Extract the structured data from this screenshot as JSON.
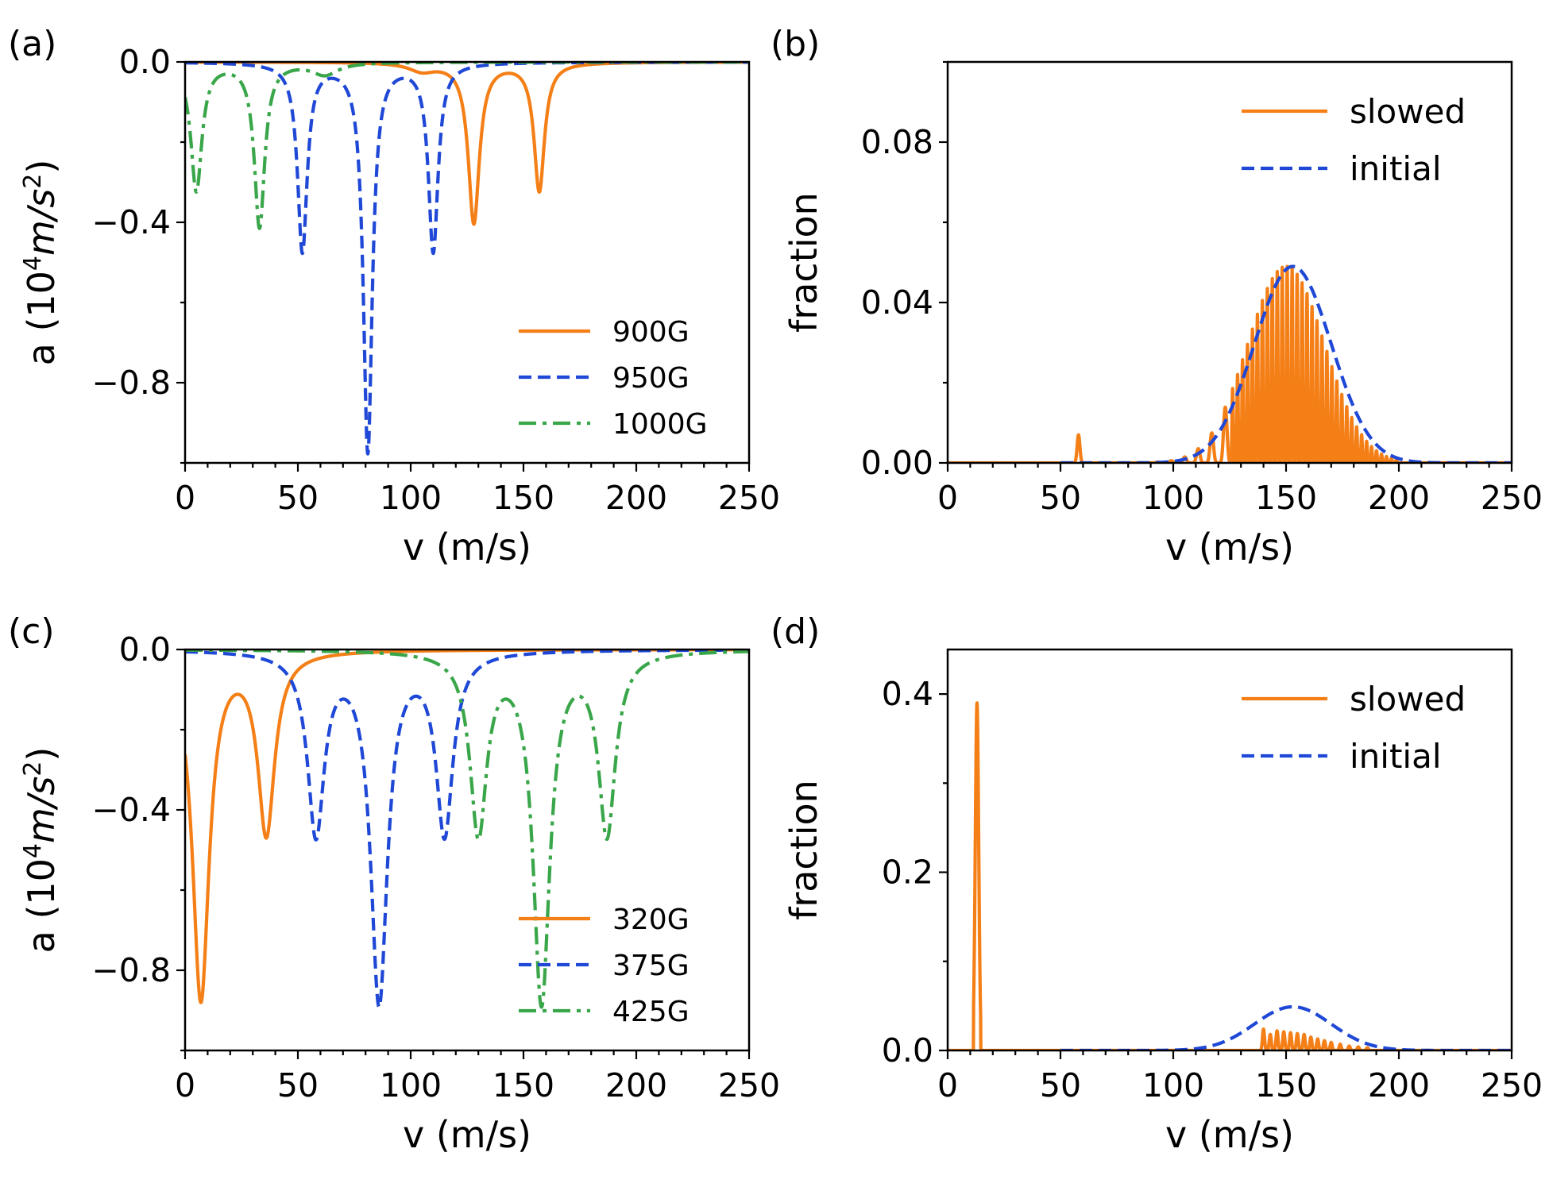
{
  "colors": {
    "orange": "#f57f17",
    "blue": "#1f48d6",
    "green": "#3aa64a"
  },
  "chart_data": [
    {
      "panel": "(a)",
      "type": "line",
      "xlabel": "v (m/s)",
      "ylabel_main": "a (10",
      "ylabel_sup": "4",
      "ylabel_unit": "m/s",
      "ylabel_sup2": "2",
      "ylabel_close": ")",
      "xlim": [
        0,
        250
      ],
      "ylim": [
        -1.0,
        0.0
      ],
      "xticks": [
        0,
        50,
        100,
        150,
        200,
        250
      ],
      "xtick_labels": [
        "0",
        "50",
        "100",
        "150",
        "200",
        "250"
      ],
      "yticks": [
        0.0,
        -0.4,
        -0.8
      ],
      "ytick_labels": [
        "0.0",
        "−0.4",
        "−0.8"
      ],
      "legend_position": "lower-right",
      "series": [
        {
          "name": "900G",
          "style": "solid",
          "color_key": "orange",
          "dips": [
            [
              128,
              -0.4,
              3.0
            ],
            [
              157,
              -0.32,
              2.8
            ],
            [
              105,
              -0.02,
              7
            ]
          ]
        },
        {
          "name": "950G",
          "style": "dashed",
          "color_key": "blue",
          "dips": [
            [
              52,
              -0.47,
              2.6
            ],
            [
              81,
              -0.97,
              2.4
            ],
            [
              110,
              -0.47,
              2.6
            ]
          ]
        },
        {
          "name": "1000G",
          "style": "dashdot",
          "color_key": "green",
          "dips": [
            [
              5,
              -0.32,
              3.0
            ],
            [
              33,
              -0.41,
              2.8
            ],
            [
              62,
              -0.03,
              7
            ]
          ]
        }
      ]
    },
    {
      "panel": "(b)",
      "type": "line",
      "xlabel": "v (m/s)",
      "ylabel": "fraction",
      "xlim": [
        0,
        250
      ],
      "ylim": [
        0,
        0.1
      ],
      "xticks": [
        0,
        50,
        100,
        150,
        200,
        250
      ],
      "xtick_labels": [
        "0",
        "50",
        "100",
        "150",
        "200",
        "250"
      ],
      "yticks": [
        0.0,
        0.04,
        0.08
      ],
      "ytick_labels": [
        "0.00",
        "0.04",
        "0.08"
      ],
      "legend_position": "top-right",
      "series": [
        {
          "name": "slowed",
          "style": "solid",
          "color_key": "orange",
          "peak_center": 150,
          "peak_height": 0.049,
          "spikes_from": 90,
          "spikes_to": 200,
          "extra_spikes": [
            [
              58,
              0.007
            ]
          ]
        },
        {
          "name": "initial",
          "style": "dashed",
          "color_key": "blue",
          "x_start": 50,
          "mean": 153,
          "sigma": 17,
          "peak": 0.049
        }
      ]
    },
    {
      "panel": "(c)",
      "type": "line",
      "xlabel": "v (m/s)",
      "ylabel_main": "a (10",
      "ylabel_sup": "4",
      "ylabel_unit": "m/s",
      "ylabel_sup2": "2",
      "ylabel_close": ")",
      "xlim": [
        0,
        250
      ],
      "ylim": [
        -1.0,
        0.0
      ],
      "xticks": [
        0,
        50,
        100,
        150,
        200,
        250
      ],
      "xtick_labels": [
        "0",
        "50",
        "100",
        "150",
        "200",
        "250"
      ],
      "yticks": [
        0.0,
        -0.4,
        -0.8
      ],
      "ytick_labels": [
        "0.0",
        "−0.4",
        "−0.8"
      ],
      "legend_position": "lower-right",
      "series": [
        {
          "name": "320G",
          "style": "solid",
          "color_key": "orange",
          "dips": [
            [
              7,
              -0.87,
              4.5
            ],
            [
              36,
              -0.45,
              4.5
            ]
          ]
        },
        {
          "name": "375G",
          "style": "dashed",
          "color_key": "blue",
          "dips": [
            [
              58,
              -0.45,
              4.5
            ],
            [
              86,
              -0.87,
              4.5
            ],
            [
              115,
              -0.45,
              4.5
            ]
          ]
        },
        {
          "name": "425G",
          "style": "dashdot",
          "color_key": "green",
          "dips": [
            [
              130,
              -0.45,
              4.5
            ],
            [
              158,
              -0.87,
              4.5
            ],
            [
              187,
              -0.45,
              4.5
            ]
          ]
        }
      ]
    },
    {
      "panel": "(d)",
      "type": "line",
      "xlabel": "v (m/s)",
      "ylabel": "fraction",
      "xlim": [
        0,
        250
      ],
      "ylim": [
        0,
        0.45
      ],
      "xticks": [
        0,
        50,
        100,
        150,
        200,
        250
      ],
      "xtick_labels": [
        "0",
        "50",
        "100",
        "150",
        "200",
        "250"
      ],
      "yticks": [
        0.0,
        0.2,
        0.4
      ],
      "ytick_labels": [
        "0.0",
        "0.2",
        "0.4"
      ],
      "legend_position": "top-right",
      "series": [
        {
          "name": "slowed",
          "style": "solid",
          "color_key": "orange",
          "main_spike": [
            13,
            0.39
          ],
          "small_spikes": [
            [
              140,
              0.024
            ],
            [
              143,
              0.018
            ],
            [
              146,
              0.022
            ],
            [
              149,
              0.021
            ],
            [
              152,
              0.02
            ],
            [
              155,
              0.019
            ],
            [
              158,
              0.018
            ],
            [
              161,
              0.015
            ],
            [
              164,
              0.013
            ],
            [
              167,
              0.011
            ],
            [
              170,
              0.009
            ],
            [
              174,
              0.007
            ],
            [
              178,
              0.005
            ],
            [
              182,
              0.004
            ],
            [
              186,
              0.003
            ]
          ]
        },
        {
          "name": "initial",
          "style": "dashed",
          "color_key": "blue",
          "x_start": 50,
          "mean": 153,
          "sigma": 17,
          "peak": 0.049
        }
      ]
    }
  ]
}
